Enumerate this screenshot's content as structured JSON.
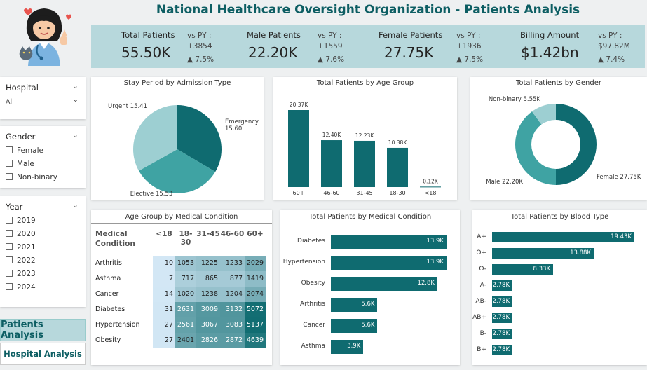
{
  "header": {
    "title": "National Healthcare Oversight Organization - Patients Analysis"
  },
  "kpis": [
    {
      "label": "Total Patients",
      "value": "55.50K",
      "vs": "vs PY :",
      "delta": "+3854",
      "pct": "▲ 7.5%"
    },
    {
      "label": "Male Patients",
      "value": "22.20K",
      "vs": "vs PY :",
      "delta": "+1559",
      "pct": "▲ 7.6%"
    },
    {
      "label": "Female Patients",
      "value": "27.75K",
      "vs": "vs PY :",
      "delta": "+1936",
      "pct": "▲ 7.5%"
    },
    {
      "label": "Billing Amount",
      "value": "$1.42bn",
      "vs": "vs PY :",
      "delta": "$97.82M",
      "pct": "▲ 7.4%"
    }
  ],
  "slicers": {
    "hospital": {
      "title": "Hospital",
      "selected": "All"
    },
    "gender": {
      "title": "Gender",
      "options": [
        "Female",
        "Male",
        "Non-binary"
      ]
    },
    "year": {
      "title": "Year",
      "options": [
        "2019",
        "2020",
        "2021",
        "2022",
        "2023",
        "2024"
      ]
    }
  },
  "nav": {
    "patients": "Patients Analysis",
    "hospital": "Hospital Analysis"
  },
  "stay_chart": {
    "title": "Stay Period by Admission Type"
  },
  "age_chart": {
    "title": "Total Patients by Age Group"
  },
  "gender_chart": {
    "title": "Total Patients by Gender"
  },
  "heatmap": {
    "title": "Age Group by Medical Condition",
    "row_header": "Medical",
    "row_header2": "Condition",
    "columns": [
      "<18",
      "18-30",
      "31-45",
      "46-60",
      "60+"
    ],
    "rows": [
      {
        "name": "Arthritis",
        "values": [
          "10",
          "1053",
          "1225",
          "1233",
          "2029"
        ]
      },
      {
        "name": "Asthma",
        "values": [
          "7",
          "717",
          "865",
          "877",
          "1419"
        ]
      },
      {
        "name": "Cancer",
        "values": [
          "14",
          "1020",
          "1238",
          "1204",
          "2074"
        ]
      },
      {
        "name": "Diabetes",
        "values": [
          "31",
          "2631",
          "3009",
          "3132",
          "5072"
        ]
      },
      {
        "name": "Hypertension",
        "values": [
          "27",
          "2561",
          "3067",
          "3083",
          "5137"
        ]
      },
      {
        "name": "Obesity",
        "values": [
          "27",
          "2401",
          "2826",
          "2872",
          "4639"
        ]
      }
    ]
  },
  "condition_chart": {
    "title": "Total Patients by Medical Condition"
  },
  "blood_chart": {
    "title": "Total Patients by Blood Type"
  },
  "colors": {
    "primary": "#0f6b70",
    "mid": "#3fa3a3",
    "light": "#9dcfd2",
    "band": "#b7d8dc"
  },
  "chart_data": [
    {
      "type": "pie",
      "title": "Stay Period by Admission Type",
      "categories": [
        "Emergency",
        "Elective",
        "Urgent"
      ],
      "values": [
        15.6,
        15.53,
        15.41
      ],
      "labels": [
        "Emergency 15.60",
        "Elective 15.53",
        "Urgent 15.41"
      ]
    },
    {
      "type": "bar",
      "title": "Total Patients by Age Group",
      "categories": [
        "60+",
        "46-60",
        "31-45",
        "18-30",
        "<18"
      ],
      "values": [
        20.37,
        12.4,
        12.23,
        10.38,
        0.12
      ],
      "labels": [
        "20.37K",
        "12.40K",
        "12.23K",
        "10.38K",
        "0.12K"
      ]
    },
    {
      "type": "pie",
      "title": "Total Patients by Gender",
      "categories": [
        "Female",
        "Male",
        "Non-binary"
      ],
      "values": [
        27.75,
        22.2,
        5.55
      ],
      "labels": [
        "Female 27.75K",
        "Male 22.20K",
        "Non-binary 5.55K"
      ]
    },
    {
      "type": "bar",
      "title": "Total Patients by Medical Condition",
      "categories": [
        "Diabetes",
        "Hypertension",
        "Obesity",
        "Arthritis",
        "Cancer",
        "Asthma"
      ],
      "values": [
        13.9,
        13.9,
        12.8,
        5.6,
        5.6,
        3.9
      ],
      "labels": [
        "13.9K",
        "13.9K",
        "12.8K",
        "5.6K",
        "5.6K",
        "3.9K"
      ]
    },
    {
      "type": "bar",
      "title": "Total Patients by Blood Type",
      "categories": [
        "A+",
        "O+",
        "O-",
        "A-",
        "AB-",
        "AB+",
        "B-",
        "B+"
      ],
      "values": [
        19.43,
        13.88,
        8.33,
        2.78,
        2.78,
        2.78,
        2.78,
        2.78
      ],
      "labels": [
        "19.43K",
        "13.88K",
        "8.33K",
        "2.78K",
        "2.78K",
        "2.78K",
        "2.78K",
        "2.78K"
      ]
    }
  ]
}
